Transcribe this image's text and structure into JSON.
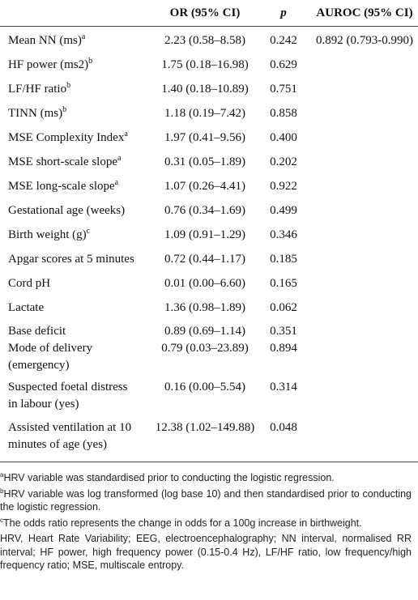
{
  "headers": {
    "or": "OR (95% CI)",
    "p": "p",
    "auroc": "AUROC (95% CI)"
  },
  "rows": [
    {
      "label": "Mean NN (ms)",
      "sup": "a",
      "or": "2.23 (0.58–8.58)",
      "p": "0.242",
      "auroc": "0.892 (0.793-0.990)"
    },
    {
      "label": "HF power (ms2)",
      "sup": "b",
      "or": "1.75 (0.18–16.98)",
      "p": "0.629",
      "auroc": ""
    },
    {
      "label": "LF/HF ratio",
      "sup": "b",
      "or": "1.40 (0.18–10.89)",
      "p": "0.751",
      "auroc": ""
    },
    {
      "label": "TINN (ms)",
      "sup": "b",
      "or": "1.18 (0.19–7.42)",
      "p": "0.858",
      "auroc": ""
    },
    {
      "label": "MSE Complexity Index",
      "sup": "a",
      "or": "1.97 (0.41–9.56)",
      "p": "0.400",
      "auroc": ""
    },
    {
      "label": "MSE short-scale slope",
      "sup": "a",
      "or": "0.31 (0.05–1.89)",
      "p": "0.202",
      "auroc": ""
    },
    {
      "label": "MSE long-scale slope",
      "sup": "a",
      "or": "1.07 (0.26–4.41)",
      "p": "0.922",
      "auroc": ""
    },
    {
      "label": "Gestational age (weeks)",
      "sup": "",
      "or": "0.76 (0.34–1.69)",
      "p": "0.499",
      "auroc": ""
    },
    {
      "label": "Birth weight (g)",
      "sup": "c",
      "or": "1.09 (0.91–1.29)",
      "p": "0.346",
      "auroc": ""
    },
    {
      "label": "Apgar scores at 5 minutes",
      "sup": "",
      "or": "0.72 (0.44–1.17)",
      "p": "0.185",
      "auroc": ""
    },
    {
      "label": "Cord pH",
      "sup": "",
      "or": "0.01 (0.00–6.60)",
      "p": "0.165",
      "auroc": ""
    },
    {
      "label": "Lactate",
      "sup": "",
      "or": "1.36 (0.98–1.89)",
      "p": "0.062",
      "auroc": ""
    },
    {
      "label": "Base deficit",
      "sup": "",
      "or": "0.89 (0.69–1.14)",
      "p": "0.351",
      "auroc": ""
    },
    {
      "label1": "Mode of delivery",
      "label2": "(emergency)",
      "or": "0.79 (0.03–23.89)",
      "p": "0.894",
      "auroc": ""
    },
    {
      "label1": "Suspected foetal distress",
      "label2": "in labour (yes)",
      "or": "0.16 (0.00–5.54)",
      "p": "0.314",
      "auroc": ""
    },
    {
      "label1": "Assisted ventilation at 10",
      "label2": "minutes of age (yes)",
      "or": "12.38 (1.02–149.88)",
      "p": "0.048",
      "auroc": ""
    }
  ],
  "footnotes": {
    "a": {
      "mark": "a",
      "text": "HRV variable was standardised prior to conducting the logistic regression."
    },
    "b": {
      "mark": "b",
      "text": "HRV variable was log transformed (log base 10) and then standardised prior to conducting the logistic regression."
    },
    "c": {
      "mark": "c",
      "text": "The odds ratio represents the change in odds for a 100g increase in birthweight."
    },
    "abbreviations": "HRV, Heart Rate Variability; EEG, electroencephalography; NN interval, normalised RR interval; HF power, high frequency power (0.15-0.4 Hz), LF/HF ratio, low frequency/high frequency ratio; MSE, multiscale entropy."
  }
}
